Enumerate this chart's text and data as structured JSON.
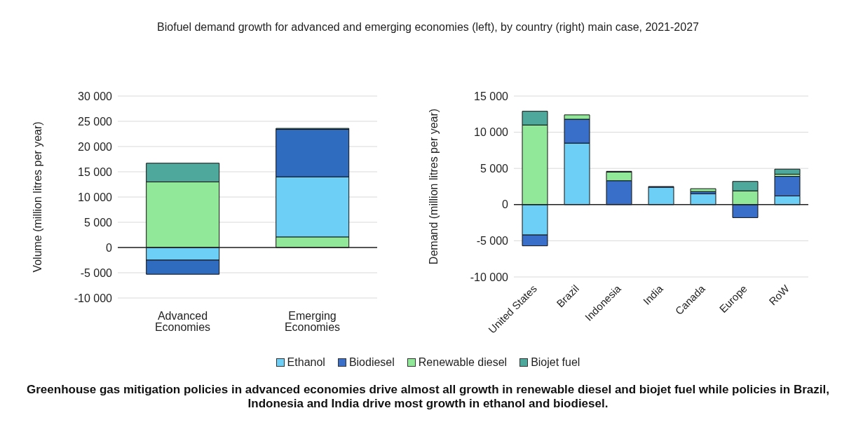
{
  "chart_data": [
    {
      "type": "bar",
      "title": "Biofuel demand growth for advanced and emerging economies (left), by country (right) main case, 2021-2027",
      "ylabel": "Volume (million litres per year)",
      "categories": [
        "Advanced Economies",
        "Emerging Economies"
      ],
      "stacked": true,
      "series": [
        {
          "color": "#90e898",
          "values": [
            13000,
            2100
          ]
        },
        {
          "color": "#6ecff6",
          "values": [
            -2500,
            11900
          ]
        },
        {
          "color": "#2f6bbf",
          "values": [
            -2800,
            9400
          ]
        },
        {
          "color": "#4fa89c",
          "values": [
            3700,
            200
          ]
        }
      ],
      "ylim": [
        -10000,
        30000
      ],
      "yticks": [
        {
          "value": -10000,
          "label": "-10 000"
        },
        {
          "value": -5000,
          "label": "-5 000"
        },
        0,
        {
          "value": 5000,
          "label": "5 000"
        },
        {
          "value": 10000,
          "label": "10 000"
        },
        {
          "value": 15000,
          "label": "15 000"
        },
        {
          "value": 20000,
          "label": "20 000"
        },
        {
          "value": 25000,
          "label": "25 000"
        },
        {
          "value": 30000,
          "label": "30 000"
        }
      ],
      "grid": "y",
      "legend": false
    },
    {
      "type": "bar",
      "ylabel": "Demand (million litres per year)",
      "categories": [
        "United States",
        "Brazil",
        "Indonesia",
        "India",
        "Canada",
        "Europe",
        "RoW"
      ],
      "stacked": true,
      "series": [
        {
          "name": "Ethanol",
          "color": "#6ecff6",
          "values": [
            -4200,
            8500,
            0,
            2400,
            1500,
            null,
            1200
          ]
        },
        {
          "name": "Biodiesel",
          "color": "#3a6fc9",
          "values": [
            -1500,
            3300,
            3300,
            100,
            300,
            -1800,
            2700
          ]
        },
        {
          "name": "Renewable diesel",
          "color": "#90e898",
          "values": [
            11000,
            600,
            1200,
            0,
            400,
            1900,
            300
          ]
        },
        {
          "name": "Biojet fuel",
          "color": "#4fa89c",
          "values": [
            1900,
            0,
            100,
            0,
            0,
            1300,
            700
          ]
        }
      ],
      "ylim": [
        -10000,
        15000
      ],
      "yticks": [
        {
          "value": -10000,
          "label": "-10 000"
        },
        {
          "value": -5000,
          "label": "-5 000"
        },
        0,
        {
          "value": 5000,
          "label": "5 000"
        },
        {
          "value": 10000,
          "label": "10 000"
        },
        {
          "value": 15000,
          "label": "15 000"
        }
      ],
      "grid": "y",
      "legend": "bottom",
      "annotations": [
        "Greenhouse gas mitigation policies in advanced economies drive almost all growth in renewable diesel and biojet fuel while policies in Brazil, Indonesia and India drive most growth in ethanol and biodiesel."
      ]
    }
  ]
}
